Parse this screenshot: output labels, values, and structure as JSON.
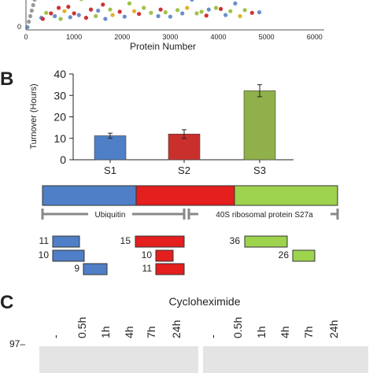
{
  "panel_a": {
    "chart_data": {
      "type": "scatter",
      "xlabel": "Protein Number",
      "x_ticks": [
        "0",
        "1000",
        "2000",
        "3000",
        "4000",
        "5000",
        "6000"
      ],
      "xlim": [
        0,
        6200
      ],
      "y_tick_visible": "0",
      "points": [
        {
          "x": 30,
          "y": 0.5,
          "c": "#6a8fc8"
        },
        {
          "x": 60,
          "y": 1.5,
          "c": "#9a9a9a"
        },
        {
          "x": 90,
          "y": 2.5,
          "c": "#9a9a9a"
        },
        {
          "x": 120,
          "y": 3.5,
          "c": "#9a9a9a"
        },
        {
          "x": 150,
          "y": 4.5,
          "c": "#9a9a9a"
        },
        {
          "x": 180,
          "y": 5.5,
          "c": "#9a9a9a"
        },
        {
          "x": 320,
          "y": 2.2,
          "c": "#6a8fc8"
        },
        {
          "x": 350,
          "y": 2.0,
          "c": "#cc3333"
        },
        {
          "x": 420,
          "y": 3.1,
          "c": "#9ec24b"
        },
        {
          "x": 520,
          "y": 3.0,
          "c": "#cc3333"
        },
        {
          "x": 600,
          "y": 2.5,
          "c": "#6a8fc8"
        },
        {
          "x": 680,
          "y": 4.0,
          "c": "#cc3333"
        },
        {
          "x": 720,
          "y": 2.0,
          "c": "#9ec24b"
        },
        {
          "x": 800,
          "y": 3.4,
          "c": "#e0b030"
        },
        {
          "x": 880,
          "y": 4.2,
          "c": "#cc3333"
        },
        {
          "x": 920,
          "y": 2.3,
          "c": "#6a8fc8"
        },
        {
          "x": 1000,
          "y": 3.0,
          "c": "#cc3333"
        },
        {
          "x": 1100,
          "y": 2.7,
          "c": "#6a8fc8"
        },
        {
          "x": 1150,
          "y": 5.6,
          "c": "#9ec24b"
        },
        {
          "x": 1250,
          "y": 2.2,
          "c": "#cc3333"
        },
        {
          "x": 1350,
          "y": 3.7,
          "c": "#cc3333"
        },
        {
          "x": 1450,
          "y": 2.5,
          "c": "#9ec24b"
        },
        {
          "x": 1500,
          "y": 3.5,
          "c": "#6a8fc8"
        },
        {
          "x": 1600,
          "y": 4.6,
          "c": "#cc3333"
        },
        {
          "x": 1650,
          "y": 2.0,
          "c": "#6a8fc8"
        },
        {
          "x": 1750,
          "y": 3.7,
          "c": "#9ec24b"
        },
        {
          "x": 1800,
          "y": 2.7,
          "c": "#e0b030"
        },
        {
          "x": 1950,
          "y": 3.3,
          "c": "#cc3333"
        },
        {
          "x": 2050,
          "y": 2.4,
          "c": "#6a8fc8"
        },
        {
          "x": 2150,
          "y": 4.8,
          "c": "#9ec24b"
        },
        {
          "x": 2250,
          "y": 3.4,
          "c": "#e0b030"
        },
        {
          "x": 2350,
          "y": 2.9,
          "c": "#cc3333"
        },
        {
          "x": 2450,
          "y": 4.0,
          "c": "#9ec24b"
        },
        {
          "x": 2600,
          "y": 3.1,
          "c": "#9ec24b"
        },
        {
          "x": 2750,
          "y": 2.5,
          "c": "#6a8fc8"
        },
        {
          "x": 2800,
          "y": 3.7,
          "c": "#cc3333"
        },
        {
          "x": 2900,
          "y": 3.2,
          "c": "#9ec24b"
        },
        {
          "x": 3000,
          "y": 2.4,
          "c": "#6a8fc8"
        },
        {
          "x": 3150,
          "y": 3.6,
          "c": "#9ec24b"
        },
        {
          "x": 3250,
          "y": 3.0,
          "c": "#6a8fc8"
        },
        {
          "x": 3350,
          "y": 4.0,
          "c": "#e0b030"
        },
        {
          "x": 3450,
          "y": 5.5,
          "c": "#6a8fc8"
        },
        {
          "x": 3550,
          "y": 3.0,
          "c": "#9ec24b"
        },
        {
          "x": 3650,
          "y": 3.3,
          "c": "#9ec24b"
        },
        {
          "x": 3750,
          "y": 2.6,
          "c": "#cc3333"
        },
        {
          "x": 3800,
          "y": 3.7,
          "c": "#6a8fc8"
        },
        {
          "x": 3950,
          "y": 4.0,
          "c": "#9ec24b"
        },
        {
          "x": 4050,
          "y": 3.8,
          "c": "#cc3333"
        },
        {
          "x": 4150,
          "y": 2.7,
          "c": "#6a8fc8"
        },
        {
          "x": 4250,
          "y": 3.4,
          "c": "#9ec24b"
        },
        {
          "x": 4350,
          "y": 4.8,
          "c": "#6a8fc8"
        },
        {
          "x": 4450,
          "y": 2.5,
          "c": "#e0b030"
        },
        {
          "x": 4550,
          "y": 3.6,
          "c": "#9ec24b"
        },
        {
          "x": 4700,
          "y": 3.1,
          "c": "#cc3333"
        },
        {
          "x": 4850,
          "y": 3.2,
          "c": "#6a8fc8"
        }
      ]
    }
  },
  "panel_b": {
    "label": "B",
    "chart_data": {
      "type": "bar",
      "categories": [
        "S1",
        "S2",
        "S3"
      ],
      "values": [
        11.2,
        12.0,
        32.2
      ],
      "errors": [
        1.2,
        2.0,
        2.8
      ],
      "colors": [
        "#4f7fc6",
        "#c9302c",
        "#8fb04a"
      ],
      "ylabel": "Turnover (Hours)",
      "ylim": [
        0,
        40
      ],
      "y_ticks": [
        "0",
        "10",
        "20",
        "30",
        "40"
      ]
    },
    "domain_bar": {
      "segments": [
        {
          "color": "#4f7fc6"
        },
        {
          "color": "#e51e1e"
        },
        {
          "color": "#9ed34e"
        }
      ],
      "labels": {
        "ubiquitin": "Ubiquitin",
        "ribosomal": "40S ribosomal protein S27a"
      }
    },
    "peptides": [
      {
        "num": "11",
        "color": "#4f7fc6"
      },
      {
        "num": "10",
        "color": "#4f7fc6"
      },
      {
        "num": "9",
        "color": "#4f7fc6"
      },
      {
        "num": "15",
        "color": "#e51e1e"
      },
      {
        "num": "10",
        "color": "#e51e1e"
      },
      {
        "num": "11",
        "color": "#e51e1e"
      },
      {
        "num": "36",
        "color": "#9ed34e"
      },
      {
        "num": "26",
        "color": "#9ed34e"
      }
    ]
  },
  "panel_c": {
    "label": "C",
    "title": "Cycloheximide",
    "lanes_left": [
      "-",
      "0.5h",
      "1h",
      "4h",
      "7h",
      "24h"
    ],
    "lanes_right": [
      "-",
      "0.5h",
      "1h",
      "4h",
      "7h",
      "24h"
    ],
    "marker": "97–"
  }
}
